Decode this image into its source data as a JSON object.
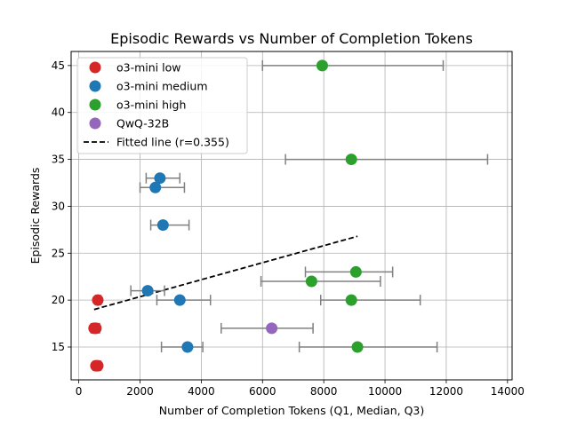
{
  "chart_data": {
    "type": "scatter",
    "title": "Episodic Rewards vs Number of Completion Tokens",
    "xlabel": "Number of Completion Tokens (Q1, Median, Q3)",
    "ylabel": "Episodic Rewards",
    "xlim": [
      -250,
      14150
    ],
    "ylim": [
      11.5,
      46.5
    ],
    "xticks": [
      0,
      2000,
      4000,
      6000,
      8000,
      10000,
      12000,
      14000
    ],
    "yticks": [
      15,
      20,
      25,
      30,
      35,
      40,
      45
    ],
    "grid": true,
    "legend_position": "top-left",
    "errorbar_color": "#808080",
    "series": [
      {
        "name": "o3-mini low",
        "color": "#d62728",
        "points": [
          {
            "y": 20,
            "q1": 550,
            "median": 620,
            "q3": 720
          },
          {
            "y": 17,
            "q1": 400,
            "median": 500,
            "q3": 650
          },
          {
            "y": 17,
            "q1": 480,
            "median": 560,
            "q3": 680
          },
          {
            "y": 13,
            "q1": 480,
            "median": 560,
            "q3": 680
          },
          {
            "y": 13,
            "q1": 520,
            "median": 620,
            "q3": 720
          }
        ]
      },
      {
        "name": "o3-mini medium",
        "color": "#1f77b4",
        "points": [
          {
            "y": 33,
            "q1": 2200,
            "median": 2650,
            "q3": 3300
          },
          {
            "y": 32,
            "q1": 2000,
            "median": 2500,
            "q3": 3450
          },
          {
            "y": 28,
            "q1": 2350,
            "median": 2750,
            "q3": 3600
          },
          {
            "y": 21,
            "q1": 1700,
            "median": 2250,
            "q3": 2800
          },
          {
            "y": 20,
            "q1": 2550,
            "median": 3300,
            "q3": 4300
          },
          {
            "y": 15,
            "q1": 2700,
            "median": 3550,
            "q3": 4050
          }
        ]
      },
      {
        "name": "o3-mini high",
        "color": "#2ca02c",
        "points": [
          {
            "y": 45,
            "q1": 6000,
            "median": 7950,
            "q3": 11900
          },
          {
            "y": 35,
            "q1": 6750,
            "median": 8900,
            "q3": 13350
          },
          {
            "y": 23,
            "q1": 7400,
            "median": 9050,
            "q3": 10250
          },
          {
            "y": 22,
            "q1": 5950,
            "median": 7600,
            "q3": 9850
          },
          {
            "y": 20,
            "q1": 7900,
            "median": 8900,
            "q3": 11150
          },
          {
            "y": 15,
            "q1": 7200,
            "median": 9100,
            "q3": 11700
          }
        ]
      },
      {
        "name": "QwQ-32B",
        "color": "#9467bd",
        "points": [
          {
            "y": 17,
            "q1": 4650,
            "median": 6300,
            "q3": 7650
          }
        ]
      }
    ],
    "fitted_line": {
      "name": "Fitted line (r=0.355)",
      "color": "#000000",
      "x": [
        500,
        9100
      ],
      "y": [
        19.0,
        26.8
      ]
    }
  }
}
